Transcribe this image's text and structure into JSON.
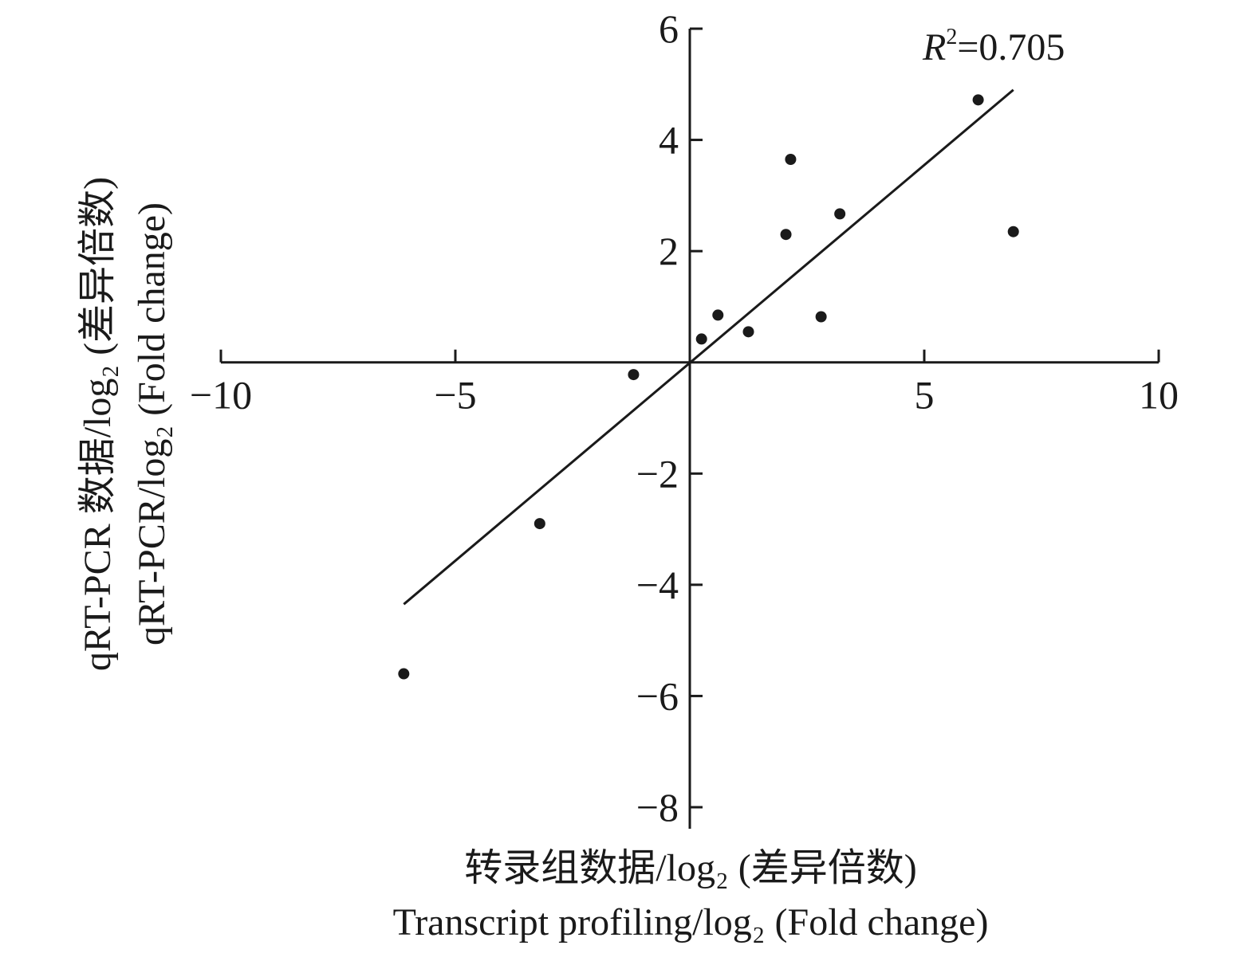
{
  "chart_data": {
    "type": "scatter",
    "title": "",
    "xlabel_cn": "转录组数据/log₂ (差异倍数)",
    "xlabel_en": "Transcript profiling/log₂ (Fold change)",
    "ylabel_cn": "qRT-PCR 数据/log₂ (差异倍数)",
    "ylabel_en": "qRT-PCR/log₂ (Fold change)",
    "xlim": [
      -10,
      10
    ],
    "ylim": [
      -8,
      6
    ],
    "x_ticks": [
      -10,
      -5,
      5,
      10
    ],
    "x_tick_labels": [
      "−10",
      "−5",
      "5",
      "10"
    ],
    "y_ticks": [
      6,
      4,
      2,
      -2,
      -4,
      -6,
      -8
    ],
    "y_tick_labels": [
      "6",
      "4",
      "2",
      "−2",
      "−4",
      "−6",
      "−8"
    ],
    "r2_label": "R²=0.705",
    "grid": false,
    "points": [
      {
        "x": -6.1,
        "y": -5.6
      },
      {
        "x": -3.2,
        "y": -2.9
      },
      {
        "x": -1.2,
        "y": -0.22
      },
      {
        "x": 0.25,
        "y": 0.42
      },
      {
        "x": 0.6,
        "y": 0.85
      },
      {
        "x": 1.25,
        "y": 0.55
      },
      {
        "x": 2.05,
        "y": 2.3
      },
      {
        "x": 2.15,
        "y": 3.65
      },
      {
        "x": 2.8,
        "y": 0.82
      },
      {
        "x": 3.2,
        "y": 2.67
      },
      {
        "x": 6.15,
        "y": 4.72
      },
      {
        "x": 6.9,
        "y": 2.35
      }
    ],
    "fit_line": {
      "x": [
        -6.1,
        6.9
      ],
      "y": [
        -4.35,
        4.9
      ]
    }
  }
}
